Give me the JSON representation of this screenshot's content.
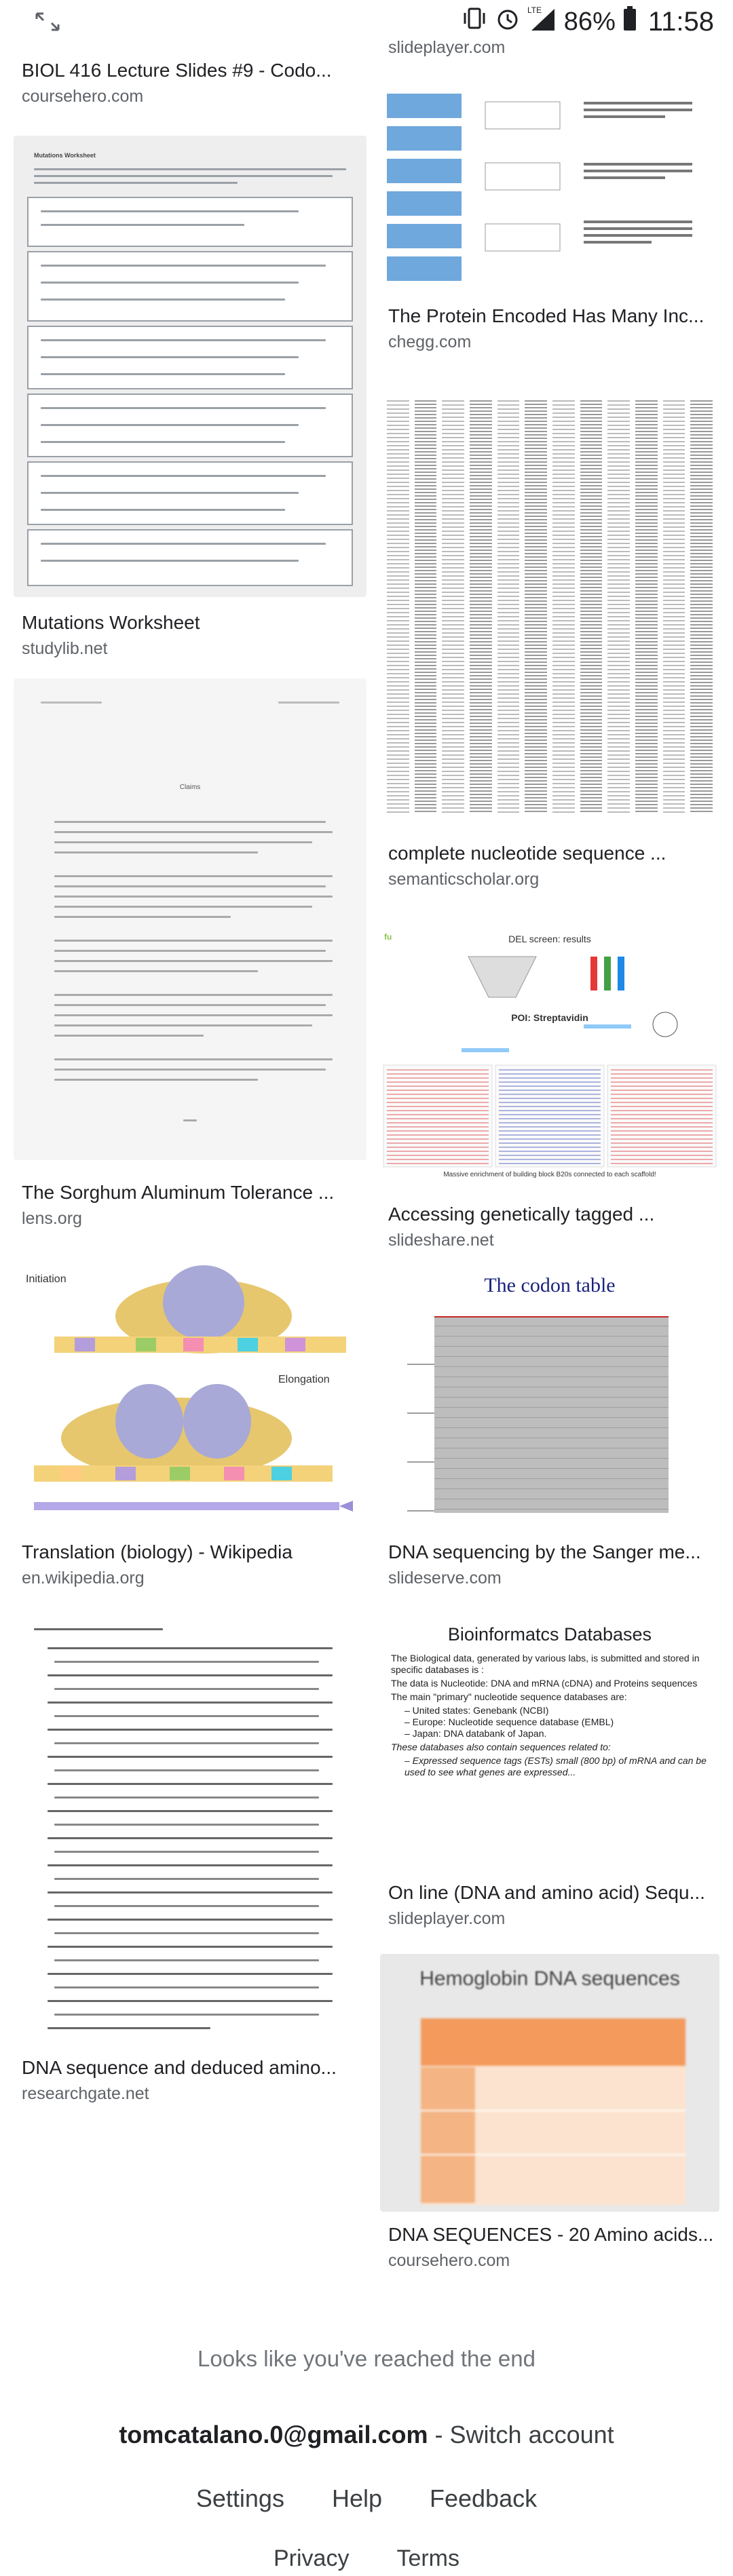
{
  "status_bar": {
    "battery_pct": "86%",
    "time": "11:58",
    "icons": [
      "expand-icon",
      "vibrate-icon",
      "alarm-icon",
      "lte-signal-icon",
      "battery-icon"
    ]
  },
  "left_column": [
    {
      "title": "BIOL 416 Lecture Slides #9 - Codo...",
      "source": "coursehero.com"
    },
    {
      "title": "Mutations Worksheet",
      "source": "studylib.net"
    },
    {
      "title": "The Sorghum Aluminum Tolerance ...",
      "source": "lens.org"
    },
    {
      "title": "Translation (biology) - Wikipedia",
      "source": "en.wikipedia.org"
    },
    {
      "title": "DNA sequence and deduced amino...",
      "source": "researchgate.net"
    }
  ],
  "right_column": [
    {
      "title": "",
      "source": "slideplayer.com"
    },
    {
      "title": "The Protein Encoded Has Many Inc...",
      "source": "chegg.com"
    },
    {
      "title": "complete nucleotide sequence ...",
      "source": "semanticscholar.org"
    },
    {
      "title": "Accessing genetically tagged ...",
      "source": "slideshare.net"
    },
    {
      "title": "DNA sequencing by the Sanger me...",
      "source": "slideserve.com"
    },
    {
      "title": "On line (DNA and amino acid) Sequ...",
      "source": "slideplayer.com"
    },
    {
      "title": "DNA SEQUENCES - 20 Amino acids...",
      "source": "coursehero.com"
    }
  ],
  "thumb_text": {
    "codon_table_title": "The codon table",
    "bioinfo_title": "Bioinformatcs Databases",
    "bioinfo_bullets": [
      "The Biological data, generated by various labs, is submitted and stored in specific databases is :",
      "The data is Nucleotide: DNA and mRNA (cDNA) and Proteins sequences",
      "The main \"primary\" nucleotide sequence databases are:",
      "– United states: Genebank (NCBI)",
      "– Europe: Nucleotide sequence database (EMBL)",
      "– Japan: DNA databank of Japan.",
      "These databases also contain sequences related to:",
      "– Expressed sequence tags (ESTs) small (800 bp) of mRNA and can be used to see what genes are expressed..."
    ],
    "hemoglobin_title": "Hemoglobin DNA sequences",
    "translation_labels": [
      "Initiation",
      "Elongation"
    ],
    "del_screen_title": "DEL screen: results",
    "del_screen_poi": "POI: Streptavidin",
    "del_screen_caption": "Massive enrichment of building block B20s connected to each scaffold!",
    "mutations_header": "Mutations Worksheet",
    "claims_title": "Claims"
  },
  "footer": {
    "end_text": "Looks like you've reached the end",
    "account_email": "tomcatalano.0@gmail.com",
    "switch_account": " - Switch account",
    "links": [
      "Settings",
      "Help",
      "Feedback"
    ],
    "links2": [
      "Privacy",
      "Terms"
    ]
  }
}
